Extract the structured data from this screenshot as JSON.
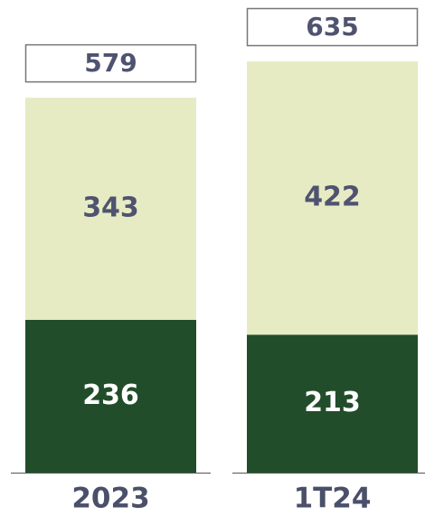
{
  "chart_data": {
    "type": "stacked_bar",
    "categories": [
      "2023",
      "1T24"
    ],
    "series": [
      {
        "color": "#224d2a",
        "label_color": "#ffffff",
        "values": [
          236,
          213
        ]
      },
      {
        "color": "#e6ebc3",
        "label_color": "#4f5370",
        "values": [
          343,
          422
        ]
      }
    ],
    "totals": [
      579,
      635
    ]
  }
}
